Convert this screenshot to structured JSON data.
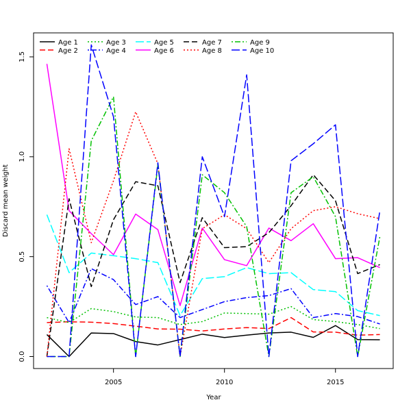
{
  "chart_data": {
    "type": "line",
    "xlabel": "Year",
    "ylabel": "Discard mean weight",
    "x": [
      2002,
      2003,
      2004,
      2005,
      2006,
      2007,
      2008,
      2009,
      2010,
      2011,
      2012,
      2013,
      2014,
      2015,
      2016,
      2017
    ],
    "xlim": [
      2001.4,
      2017.6
    ],
    "ylim": [
      -0.06,
      1.62
    ],
    "xticks": [
      2005,
      2010,
      2015
    ],
    "yticks": [
      0.0,
      0.5,
      1.0,
      1.5
    ],
    "xtick_labels": [
      "2005",
      "2010",
      "2015"
    ],
    "ytick_labels": [
      "0.0",
      "0.5",
      "1.0",
      "1.5"
    ],
    "legend_position": "top-left",
    "series": [
      {
        "name": "Age 1",
        "color": "#000000",
        "dash": "solid",
        "values": [
          0.11,
          0.0,
          0.118,
          0.115,
          0.075,
          0.058,
          0.085,
          0.112,
          0.095,
          0.107,
          0.118,
          0.122,
          0.096,
          0.155,
          0.085,
          0.084
        ]
      },
      {
        "name": "Age 2",
        "color": "#ff0000",
        "dash": "dashed",
        "values": [
          0.17,
          0.174,
          0.172,
          0.165,
          0.152,
          0.138,
          0.137,
          0.128,
          0.138,
          0.145,
          0.14,
          0.195,
          0.123,
          0.122,
          0.107,
          0.11
        ]
      },
      {
        "name": "Age 3",
        "color": "#00c000",
        "dash": "dotted",
        "values": [
          0.195,
          0.17,
          0.24,
          0.225,
          0.198,
          0.195,
          0.16,
          0.175,
          0.218,
          0.215,
          0.212,
          0.25,
          0.185,
          0.175,
          0.16,
          0.14
        ]
      },
      {
        "name": "Age 4",
        "color": "#0000ff",
        "dash": "dashdot",
        "values": [
          0.355,
          0.17,
          0.44,
          0.385,
          0.26,
          0.3,
          0.195,
          0.235,
          0.275,
          0.295,
          0.305,
          0.34,
          0.195,
          0.215,
          0.2,
          0.163
        ]
      },
      {
        "name": "Age 5",
        "color": "#00ffff",
        "dash": "longdash",
        "values": [
          0.71,
          0.42,
          0.518,
          0.505,
          0.49,
          0.47,
          0.205,
          0.39,
          0.4,
          0.445,
          0.415,
          0.42,
          0.335,
          0.325,
          0.23,
          0.205
        ]
      },
      {
        "name": "Age 6",
        "color": "#ff00ff",
        "dash": "solid",
        "values": [
          1.465,
          0.73,
          0.615,
          0.51,
          0.713,
          0.635,
          0.255,
          0.643,
          0.485,
          0.455,
          0.643,
          0.58,
          0.665,
          0.49,
          0.495,
          0.445
        ]
      },
      {
        "name": "Age 7",
        "color": "#000000",
        "dash": "dashed",
        "values": [
          0.0,
          0.79,
          0.35,
          0.685,
          0.875,
          0.855,
          0.37,
          0.695,
          0.545,
          0.55,
          0.62,
          0.755,
          0.91,
          0.78,
          0.415,
          0.46
        ]
      },
      {
        "name": "Age 8",
        "color": "#ff0000",
        "dash": "dotted",
        "values": [
          0.0,
          1.04,
          0.57,
          0.88,
          1.225,
          0.965,
          0.0,
          0.64,
          0.71,
          0.64,
          0.47,
          0.64,
          0.73,
          0.75,
          0.715,
          0.69
        ]
      },
      {
        "name": "Age 9",
        "color": "#00c000",
        "dash": "dashdot",
        "values": [
          0.0,
          0.0,
          1.08,
          1.3,
          0.0,
          0.96,
          0.0,
          0.91,
          0.82,
          0.65,
          0.0,
          0.82,
          0.9,
          0.7,
          0.0,
          0.6
        ]
      },
      {
        "name": "Age 10",
        "color": "#0000ff",
        "dash": "longdash",
        "values": [
          0.0,
          0.0,
          1.56,
          1.2,
          0.0,
          0.97,
          0.0,
          1.0,
          0.7,
          1.41,
          0.0,
          0.98,
          1.065,
          1.16,
          0.0,
          0.73
        ]
      }
    ]
  }
}
